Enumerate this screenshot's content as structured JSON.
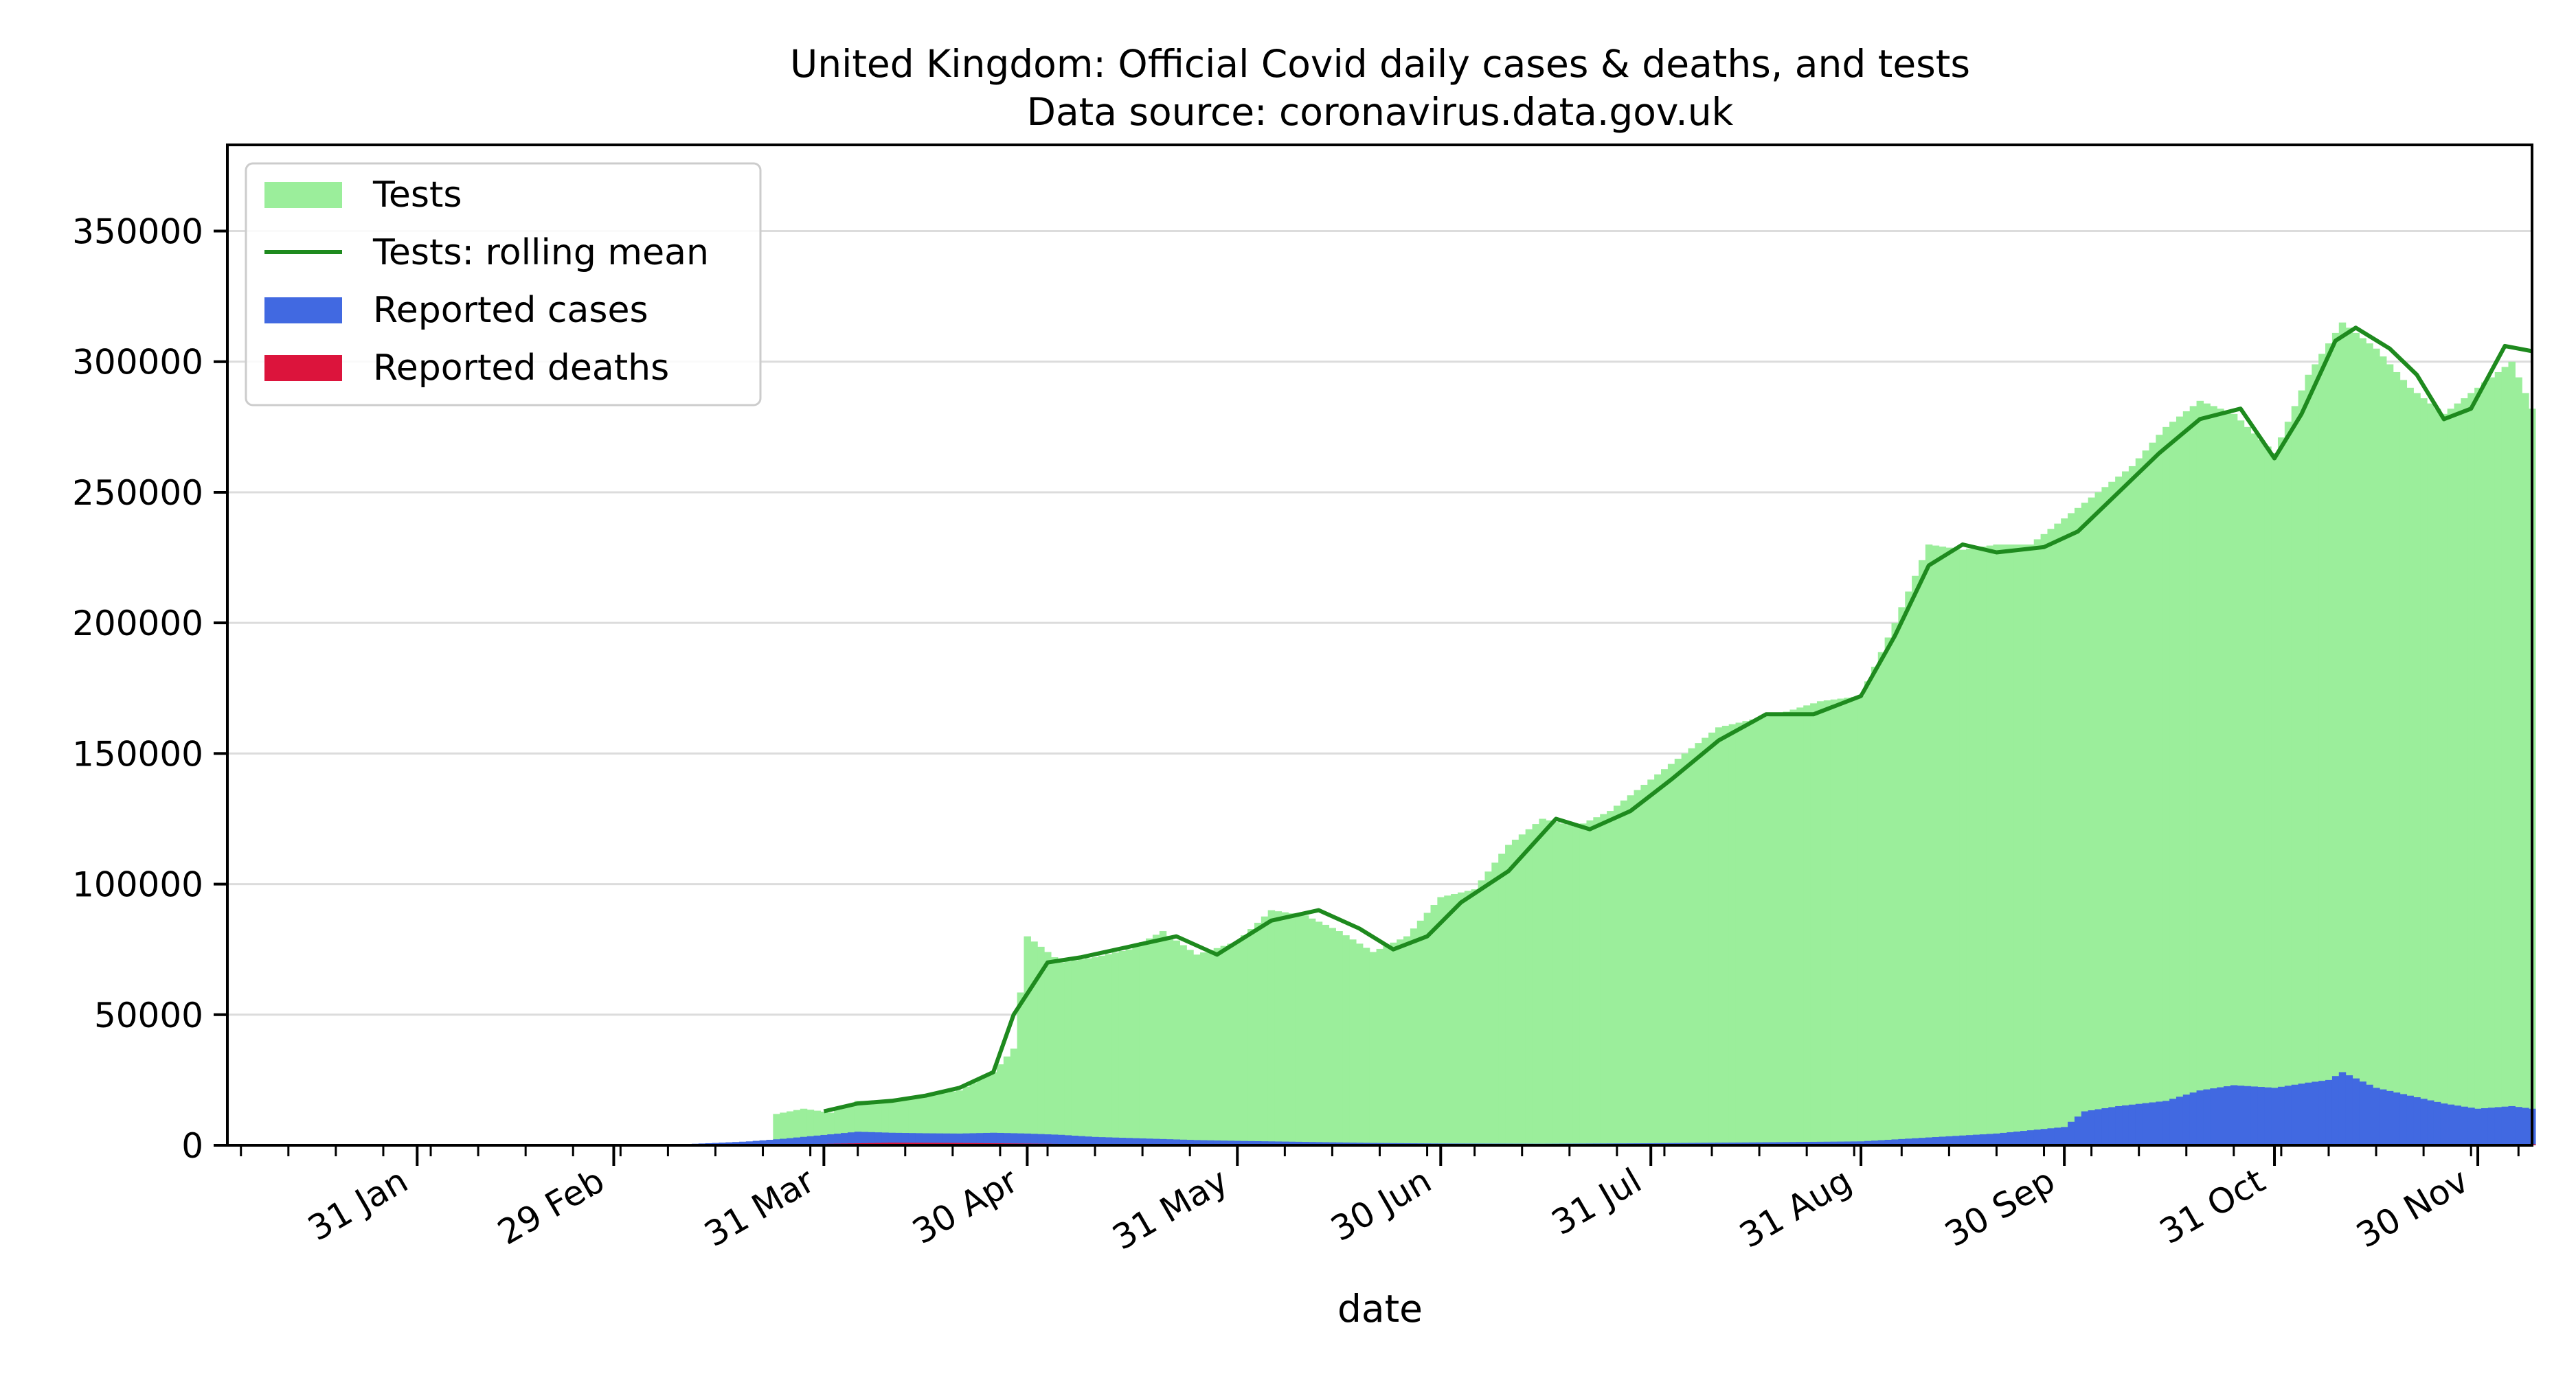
{
  "chart_data": {
    "type": "bar",
    "title": "United Kingdom: Official Covid daily cases & deaths, and tests",
    "subtitle": "Data source: coronavirus.data.gov.uk",
    "xlabel": "date",
    "ylabel": "",
    "x_start": "2020-01-03",
    "x_end": "2020-12-08",
    "ylim": [
      0,
      383000
    ],
    "yticks": [
      0,
      50000,
      100000,
      150000,
      200000,
      250000,
      300000,
      350000
    ],
    "xticks": [
      {
        "date": "2020-01-31",
        "label": "31 Jan"
      },
      {
        "date": "2020-02-29",
        "label": "29 Feb"
      },
      {
        "date": "2020-03-31",
        "label": "31 Mar"
      },
      {
        "date": "2020-04-30",
        "label": "30 Apr"
      },
      {
        "date": "2020-05-31",
        "label": "31 May"
      },
      {
        "date": "2020-06-30",
        "label": "30 Jun"
      },
      {
        "date": "2020-07-31",
        "label": "31 Jul"
      },
      {
        "date": "2020-08-31",
        "label": "31 Aug"
      },
      {
        "date": "2020-09-30",
        "label": "30 Sep"
      },
      {
        "date": "2020-10-31",
        "label": "31 Oct"
      },
      {
        "date": "2020-11-30",
        "label": "30 Nov"
      }
    ],
    "grid": "horizontal",
    "legend_position": "top-left",
    "legend": [
      {
        "label": "Tests",
        "kind": "patch",
        "color": "#9bee9b"
      },
      {
        "label": "Tests: rolling mean",
        "kind": "line",
        "color": "#1e8a1e"
      },
      {
        "label": "Reported cases",
        "kind": "patch",
        "color": "#4169e1"
      },
      {
        "label": "Reported deaths",
        "kind": "patch",
        "color": "#dc143c"
      }
    ],
    "series": [
      {
        "name": "Tests",
        "color": "#9bee9b",
        "points": [
          [
            "2020-03-24",
            12000
          ],
          [
            "2020-03-28",
            14000
          ],
          [
            "2020-04-01",
            12500
          ],
          [
            "2020-04-05",
            17000
          ],
          [
            "2020-04-10",
            17000
          ],
          [
            "2020-04-15",
            19000
          ],
          [
            "2020-04-20",
            21000
          ],
          [
            "2020-04-25",
            28000
          ],
          [
            "2020-04-28",
            37000
          ],
          [
            "2020-04-30",
            80000
          ],
          [
            "2020-05-05",
            70000
          ],
          [
            "2020-05-10",
            72000
          ],
          [
            "2020-05-15",
            75000
          ],
          [
            "2020-05-20",
            82000
          ],
          [
            "2020-05-25",
            73000
          ],
          [
            "2020-05-31",
            78000
          ],
          [
            "2020-06-05",
            90000
          ],
          [
            "2020-06-10",
            88000
          ],
          [
            "2020-06-15",
            82000
          ],
          [
            "2020-06-20",
            74000
          ],
          [
            "2020-06-25",
            80000
          ],
          [
            "2020-06-30",
            95000
          ],
          [
            "2020-07-05",
            98000
          ],
          [
            "2020-07-10",
            115000
          ],
          [
            "2020-07-15",
            125000
          ],
          [
            "2020-07-20",
            122000
          ],
          [
            "2020-07-25",
            128000
          ],
          [
            "2020-07-31",
            140000
          ],
          [
            "2020-08-05",
            150000
          ],
          [
            "2020-08-10",
            160000
          ],
          [
            "2020-08-15",
            163000
          ],
          [
            "2020-08-20",
            166000
          ],
          [
            "2020-08-25",
            170000
          ],
          [
            "2020-08-31",
            172000
          ],
          [
            "2020-09-05",
            200000
          ],
          [
            "2020-09-10",
            230000
          ],
          [
            "2020-09-15",
            228000
          ],
          [
            "2020-09-20",
            230000
          ],
          [
            "2020-09-25",
            230000
          ],
          [
            "2020-09-30",
            240000
          ],
          [
            "2020-10-05",
            250000
          ],
          [
            "2020-10-10",
            260000
          ],
          [
            "2020-10-15",
            275000
          ],
          [
            "2020-10-20",
            285000
          ],
          [
            "2020-10-25",
            280000
          ],
          [
            "2020-10-31",
            265000
          ],
          [
            "2020-11-05",
            295000
          ],
          [
            "2020-11-10",
            315000
          ],
          [
            "2020-11-15",
            305000
          ],
          [
            "2020-11-20",
            290000
          ],
          [
            "2020-11-25",
            280000
          ],
          [
            "2020-11-30",
            290000
          ],
          [
            "2020-12-05",
            300000
          ],
          [
            "2020-12-08",
            282000
          ]
        ]
      },
      {
        "name": "Tests: rolling mean",
        "color": "#1e8a1e",
        "points": [
          [
            "2020-03-31",
            13000
          ],
          [
            "2020-04-05",
            16000
          ],
          [
            "2020-04-10",
            17000
          ],
          [
            "2020-04-15",
            19000
          ],
          [
            "2020-04-20",
            22000
          ],
          [
            "2020-04-25",
            28000
          ],
          [
            "2020-04-28",
            50000
          ],
          [
            "2020-05-03",
            70000
          ],
          [
            "2020-05-08",
            72000
          ],
          [
            "2020-05-15",
            76000
          ],
          [
            "2020-05-22",
            80000
          ],
          [
            "2020-05-28",
            73000
          ],
          [
            "2020-06-05",
            86000
          ],
          [
            "2020-06-12",
            90000
          ],
          [
            "2020-06-18",
            83000
          ],
          [
            "2020-06-23",
            75000
          ],
          [
            "2020-06-28",
            80000
          ],
          [
            "2020-07-03",
            93000
          ],
          [
            "2020-07-10",
            105000
          ],
          [
            "2020-07-17",
            125000
          ],
          [
            "2020-07-22",
            121000
          ],
          [
            "2020-07-28",
            128000
          ],
          [
            "2020-08-03",
            140000
          ],
          [
            "2020-08-10",
            155000
          ],
          [
            "2020-08-17",
            165000
          ],
          [
            "2020-08-24",
            165000
          ],
          [
            "2020-08-31",
            172000
          ],
          [
            "2020-09-05",
            195000
          ],
          [
            "2020-09-10",
            222000
          ],
          [
            "2020-09-15",
            230000
          ],
          [
            "2020-09-20",
            227000
          ],
          [
            "2020-09-27",
            229000
          ],
          [
            "2020-10-02",
            235000
          ],
          [
            "2020-10-08",
            250000
          ],
          [
            "2020-10-14",
            265000
          ],
          [
            "2020-10-20",
            278000
          ],
          [
            "2020-10-26",
            282000
          ],
          [
            "2020-10-31",
            263000
          ],
          [
            "2020-11-04",
            280000
          ],
          [
            "2020-11-09",
            308000
          ],
          [
            "2020-11-12",
            313000
          ],
          [
            "2020-11-17",
            305000
          ],
          [
            "2020-11-21",
            295000
          ],
          [
            "2020-11-25",
            278000
          ],
          [
            "2020-11-29",
            282000
          ],
          [
            "2020-12-04",
            306000
          ],
          [
            "2020-12-08",
            304000
          ]
        ]
      },
      {
        "name": "Reported cases",
        "color": "#4169e1",
        "points": [
          [
            "2020-03-10",
            400
          ],
          [
            "2020-03-15",
            900
          ],
          [
            "2020-03-20",
            1500
          ],
          [
            "2020-03-25",
            2500
          ],
          [
            "2020-04-01",
            4200
          ],
          [
            "2020-04-05",
            5200
          ],
          [
            "2020-04-10",
            4800
          ],
          [
            "2020-04-15",
            4600
          ],
          [
            "2020-04-20",
            4500
          ],
          [
            "2020-04-25",
            4800
          ],
          [
            "2020-04-30",
            4500
          ],
          [
            "2020-05-05",
            4000
          ],
          [
            "2020-05-10",
            3200
          ],
          [
            "2020-05-15",
            2800
          ],
          [
            "2020-05-20",
            2400
          ],
          [
            "2020-05-25",
            2000
          ],
          [
            "2020-05-31",
            1700
          ],
          [
            "2020-06-10",
            1300
          ],
          [
            "2020-06-20",
            900
          ],
          [
            "2020-06-30",
            700
          ],
          [
            "2020-07-15",
            600
          ],
          [
            "2020-07-31",
            800
          ],
          [
            "2020-08-15",
            1100
          ],
          [
            "2020-08-31",
            1500
          ],
          [
            "2020-09-10",
            3000
          ],
          [
            "2020-09-20",
            4500
          ],
          [
            "2020-09-30",
            7000
          ],
          [
            "2020-10-03",
            13000
          ],
          [
            "2020-10-08",
            15000
          ],
          [
            "2020-10-15",
            17000
          ],
          [
            "2020-10-20",
            21000
          ],
          [
            "2020-10-25",
            23000
          ],
          [
            "2020-10-31",
            22000
          ],
          [
            "2020-11-05",
            24000
          ],
          [
            "2020-11-08",
            25000
          ],
          [
            "2020-11-10",
            28000
          ],
          [
            "2020-11-15",
            22000
          ],
          [
            "2020-11-20",
            19000
          ],
          [
            "2020-11-25",
            16000
          ],
          [
            "2020-11-30",
            14000
          ],
          [
            "2020-12-05",
            15000
          ],
          [
            "2020-12-08",
            14000
          ]
        ]
      },
      {
        "name": "Reported deaths",
        "color": "#dc143c",
        "points": [
          [
            "2020-03-20",
            50
          ],
          [
            "2020-04-10",
            1000
          ],
          [
            "2020-04-20",
            900
          ],
          [
            "2020-05-10",
            400
          ],
          [
            "2020-06-10",
            150
          ],
          [
            "2020-07-15",
            60
          ],
          [
            "2020-08-15",
            10
          ],
          [
            "2020-09-15",
            20
          ],
          [
            "2020-10-15",
            140
          ],
          [
            "2020-11-10",
            520
          ],
          [
            "2020-12-08",
            400
          ]
        ]
      }
    ]
  }
}
